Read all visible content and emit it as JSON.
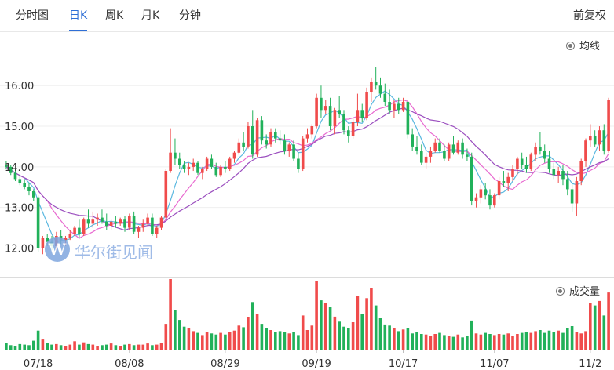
{
  "tabs": [
    {
      "label": "分时图",
      "active": false
    },
    {
      "label": "日K",
      "active": true
    },
    {
      "label": "周K",
      "active": false
    },
    {
      "label": "月K",
      "active": false
    },
    {
      "label": "分钟",
      "active": false
    }
  ],
  "adjust_label": "前复权",
  "ma_toggle_label": "均线",
  "volume_toggle_label": "成交量",
  "watermark": "华尔街见闻",
  "colors": {
    "up": "#f04b4b",
    "down": "#21b15a",
    "ma5": "#5bb8e0",
    "ma10": "#e86ad0",
    "ma20": "#9b4fbf",
    "active_tab": "#2f6fd6"
  },
  "chart_data": {
    "type": "candlestick",
    "price_axis": {
      "ticks": [
        12.0,
        13.0,
        14.0,
        15.0,
        16.0
      ],
      "tick_labels": [
        "12.00",
        "13.00",
        "14.00",
        "15.00",
        "16.00"
      ]
    },
    "date_ticks": [
      {
        "index": 7,
        "label": "07/18"
      },
      {
        "index": 27,
        "label": "08/08"
      },
      {
        "index": 48,
        "label": "08/29"
      },
      {
        "index": 68,
        "label": "09/19"
      },
      {
        "index": 87,
        "label": "10/17"
      },
      {
        "index": 107,
        "label": "11/07"
      },
      {
        "index": 128,
        "label": "11/2"
      }
    ],
    "ohlc": [
      [
        14.05,
        14.15,
        13.95,
        14.0
      ],
      [
        14.0,
        14.05,
        13.8,
        13.85
      ],
      [
        13.85,
        13.95,
        13.65,
        13.7
      ],
      [
        13.7,
        13.8,
        13.55,
        13.6
      ],
      [
        13.6,
        13.7,
        13.45,
        13.5
      ],
      [
        13.5,
        13.6,
        13.3,
        13.4
      ],
      [
        13.4,
        13.45,
        13.15,
        13.25
      ],
      [
        13.25,
        13.3,
        11.9,
        12.0
      ],
      [
        12.0,
        12.3,
        11.85,
        12.25
      ],
      [
        12.25,
        12.35,
        12.05,
        12.15
      ],
      [
        12.15,
        12.3,
        11.95,
        12.05
      ],
      [
        12.05,
        12.4,
        11.95,
        12.3
      ],
      [
        12.3,
        12.45,
        12.1,
        12.2
      ],
      [
        12.2,
        12.3,
        12.05,
        12.25
      ],
      [
        12.25,
        12.45,
        12.2,
        12.35
      ],
      [
        12.35,
        12.55,
        12.3,
        12.5
      ],
      [
        12.5,
        12.7,
        12.25,
        12.35
      ],
      [
        12.35,
        12.75,
        12.3,
        12.7
      ],
      [
        12.7,
        12.95,
        12.5,
        12.6
      ],
      [
        12.6,
        12.9,
        12.5,
        12.7
      ],
      [
        12.7,
        12.85,
        12.55,
        12.75
      ],
      [
        12.75,
        12.95,
        12.6,
        12.65
      ],
      [
        12.65,
        12.85,
        12.45,
        12.55
      ],
      [
        12.55,
        12.7,
        12.45,
        12.65
      ],
      [
        12.65,
        12.8,
        12.5,
        12.6
      ],
      [
        12.6,
        12.75,
        12.55,
        12.7
      ],
      [
        12.7,
        12.8,
        12.4,
        12.5
      ],
      [
        12.5,
        12.85,
        12.45,
        12.8
      ],
      [
        12.8,
        12.9,
        12.35,
        12.4
      ],
      [
        12.4,
        12.55,
        12.25,
        12.5
      ],
      [
        12.5,
        12.7,
        12.4,
        12.6
      ],
      [
        12.6,
        12.85,
        12.55,
        12.75
      ],
      [
        12.75,
        12.85,
        12.3,
        12.35
      ],
      [
        12.35,
        12.55,
        12.25,
        12.5
      ],
      [
        12.5,
        12.8,
        12.45,
        12.75
      ],
      [
        12.75,
        13.95,
        12.7,
        13.9
      ],
      [
        13.9,
        14.95,
        13.85,
        14.35
      ],
      [
        14.35,
        14.7,
        14.05,
        14.2
      ],
      [
        14.2,
        14.35,
        13.95,
        14.05
      ],
      [
        14.05,
        14.15,
        13.85,
        13.95
      ],
      [
        13.95,
        14.1,
        13.8,
        14.0
      ],
      [
        14.0,
        14.2,
        13.9,
        14.1
      ],
      [
        14.1,
        14.15,
        13.8,
        13.85
      ],
      [
        13.85,
        14.0,
        13.7,
        13.95
      ],
      [
        13.95,
        14.25,
        13.9,
        14.2
      ],
      [
        14.2,
        14.3,
        13.95,
        14.0
      ],
      [
        14.0,
        14.1,
        13.75,
        13.8
      ],
      [
        13.8,
        14.05,
        13.75,
        14.0
      ],
      [
        14.0,
        14.15,
        13.85,
        13.95
      ],
      [
        13.95,
        14.25,
        13.9,
        14.2
      ],
      [
        14.2,
        14.4,
        14.1,
        14.35
      ],
      [
        14.35,
        14.7,
        14.3,
        14.6
      ],
      [
        14.6,
        14.85,
        14.4,
        14.5
      ],
      [
        14.5,
        15.1,
        14.45,
        15.0
      ],
      [
        15.0,
        15.4,
        14.2,
        14.3
      ],
      [
        14.3,
        15.2,
        14.25,
        15.15
      ],
      [
        15.15,
        15.25,
        14.55,
        14.65
      ],
      [
        14.65,
        14.8,
        14.45,
        14.55
      ],
      [
        14.55,
        14.95,
        14.5,
        14.85
      ],
      [
        14.85,
        14.95,
        14.6,
        14.7
      ],
      [
        14.7,
        14.9,
        14.55,
        14.65
      ],
      [
        14.65,
        14.8,
        14.3,
        14.4
      ],
      [
        14.4,
        14.6,
        14.25,
        14.55
      ],
      [
        14.55,
        14.65,
        14.15,
        14.2
      ],
      [
        14.2,
        14.35,
        13.85,
        13.95
      ],
      [
        13.95,
        14.75,
        13.9,
        14.7
      ],
      [
        14.7,
        14.95,
        14.6,
        14.8
      ],
      [
        14.8,
        15.05,
        14.7,
        15.0
      ],
      [
        15.0,
        15.8,
        14.95,
        15.7
      ],
      [
        15.7,
        16.0,
        15.2,
        15.4
      ],
      [
        15.4,
        15.65,
        15.3,
        15.5
      ],
      [
        15.5,
        15.7,
        14.9,
        15.0
      ],
      [
        15.0,
        15.45,
        14.8,
        15.4
      ],
      [
        15.4,
        15.75,
        15.2,
        15.3
      ],
      [
        15.3,
        15.4,
        14.8,
        14.9
      ],
      [
        14.9,
        15.0,
        14.6,
        14.75
      ],
      [
        14.75,
        15.2,
        14.7,
        15.1
      ],
      [
        15.1,
        15.8,
        15.0,
        15.4
      ],
      [
        15.4,
        15.55,
        15.1,
        15.2
      ],
      [
        15.2,
        15.95,
        15.15,
        15.85
      ],
      [
        15.85,
        16.2,
        15.6,
        16.1
      ],
      [
        16.1,
        16.45,
        15.9,
        16.0
      ],
      [
        16.0,
        16.2,
        15.7,
        15.8
      ],
      [
        15.8,
        16.05,
        15.5,
        15.6
      ],
      [
        15.6,
        15.9,
        15.3,
        15.4
      ],
      [
        15.4,
        15.65,
        15.2,
        15.55
      ],
      [
        15.55,
        15.7,
        15.3,
        15.4
      ],
      [
        15.4,
        15.7,
        15.35,
        15.6
      ],
      [
        15.6,
        15.65,
        14.7,
        14.8
      ],
      [
        14.8,
        14.95,
        14.4,
        14.5
      ],
      [
        14.5,
        14.75,
        14.3,
        14.4
      ],
      [
        14.4,
        14.55,
        14.05,
        14.1
      ],
      [
        14.1,
        14.35,
        13.95,
        14.25
      ],
      [
        14.25,
        14.5,
        14.1,
        14.4
      ],
      [
        14.4,
        14.7,
        14.35,
        14.6
      ],
      [
        14.6,
        14.7,
        14.35,
        14.4
      ],
      [
        14.4,
        14.55,
        14.15,
        14.2
      ],
      [
        14.2,
        14.6,
        14.15,
        14.55
      ],
      [
        14.55,
        14.75,
        14.3,
        14.35
      ],
      [
        14.35,
        14.65,
        14.3,
        14.6
      ],
      [
        14.6,
        14.7,
        14.2,
        14.3
      ],
      [
        14.3,
        14.45,
        14.15,
        14.25
      ],
      [
        14.25,
        14.35,
        13.05,
        13.15
      ],
      [
        13.15,
        13.35,
        13.0,
        13.25
      ],
      [
        13.25,
        13.55,
        13.1,
        13.45
      ],
      [
        13.45,
        13.6,
        13.2,
        13.3
      ],
      [
        13.3,
        13.45,
        12.95,
        13.05
      ],
      [
        13.05,
        13.35,
        13.0,
        13.3
      ],
      [
        13.3,
        13.75,
        13.2,
        13.65
      ],
      [
        13.65,
        13.9,
        13.5,
        13.6
      ],
      [
        13.6,
        13.85,
        13.4,
        13.75
      ],
      [
        13.75,
        14.05,
        13.65,
        13.95
      ],
      [
        13.95,
        14.25,
        13.8,
        14.2
      ],
      [
        14.2,
        14.35,
        13.95,
        14.05
      ],
      [
        14.05,
        14.25,
        13.85,
        13.95
      ],
      [
        13.95,
        14.35,
        13.9,
        14.3
      ],
      [
        14.3,
        14.6,
        14.15,
        14.5
      ],
      [
        14.5,
        14.85,
        14.3,
        14.4
      ],
      [
        14.4,
        14.55,
        14.1,
        14.2
      ],
      [
        14.2,
        14.4,
        13.85,
        13.95
      ],
      [
        13.95,
        14.1,
        13.7,
        13.8
      ],
      [
        13.8,
        14.0,
        13.6,
        13.9
      ],
      [
        13.9,
        14.05,
        13.55,
        13.7
      ],
      [
        13.7,
        13.9,
        13.3,
        13.45
      ],
      [
        13.45,
        13.6,
        12.9,
        13.1
      ],
      [
        13.1,
        13.75,
        12.8,
        13.65
      ],
      [
        13.65,
        14.2,
        13.55,
        14.15
      ],
      [
        14.15,
        14.7,
        14.0,
        14.65
      ],
      [
        14.65,
        15.05,
        14.5,
        14.75
      ],
      [
        14.75,
        14.9,
        14.5,
        14.55
      ],
      [
        14.55,
        15.0,
        14.4,
        14.9
      ],
      [
        14.9,
        15.05,
        14.3,
        14.4
      ],
      [
        14.4,
        15.7,
        14.35,
        15.65
      ]
    ],
    "volume": [
      1.2,
      0.8,
      0.6,
      1.0,
      0.9,
      0.8,
      1.6,
      3.4,
      1.8,
      1.2,
      0.9,
      1.0,
      0.8,
      0.7,
      0.9,
      1.5,
      0.9,
      1.3,
      1.0,
      0.9,
      0.7,
      0.8,
      0.9,
      1.1,
      0.8,
      0.7,
      0.9,
      1.0,
      0.8,
      0.9,
      0.9,
      1.1,
      0.8,
      0.9,
      1.2,
      4.6,
      12.6,
      7.0,
      5.3,
      4.1,
      3.9,
      3.3,
      3.0,
      2.6,
      3.1,
      2.9,
      2.7,
      3.0,
      2.7,
      3.2,
      3.4,
      4.3,
      4.0,
      5.8,
      8.5,
      6.4,
      4.6,
      3.8,
      3.5,
      3.1,
      3.3,
      3.2,
      2.9,
      3.1,
      2.6,
      6.1,
      3.5,
      4.3,
      12.3,
      8.8,
      8.3,
      7.6,
      5.9,
      5.0,
      4.1,
      3.8,
      4.9,
      9.6,
      6.3,
      9.2,
      11.0,
      7.9,
      5.6,
      4.5,
      4.3,
      3.8,
      3.3,
      3.6,
      3.9,
      2.9,
      3.1,
      2.8,
      2.7,
      2.4,
      2.8,
      3.0,
      2.6,
      2.4,
      2.3,
      2.7,
      2.2,
      2.5,
      5.2,
      2.9,
      2.7,
      3.0,
      2.8,
      2.6,
      2.8,
      2.7,
      2.9,
      2.5,
      2.8,
      3.0,
      3.2,
      3.0,
      3.3,
      3.5,
      3.0,
      3.4,
      3.2,
      3.4,
      3.0,
      3.8,
      4.2,
      3.2,
      2.9,
      3.3,
      8.3,
      7.9,
      8.7,
      6.1,
      10.2
    ],
    "moving_averages": [
      "MA5",
      "MA10",
      "MA20"
    ]
  }
}
